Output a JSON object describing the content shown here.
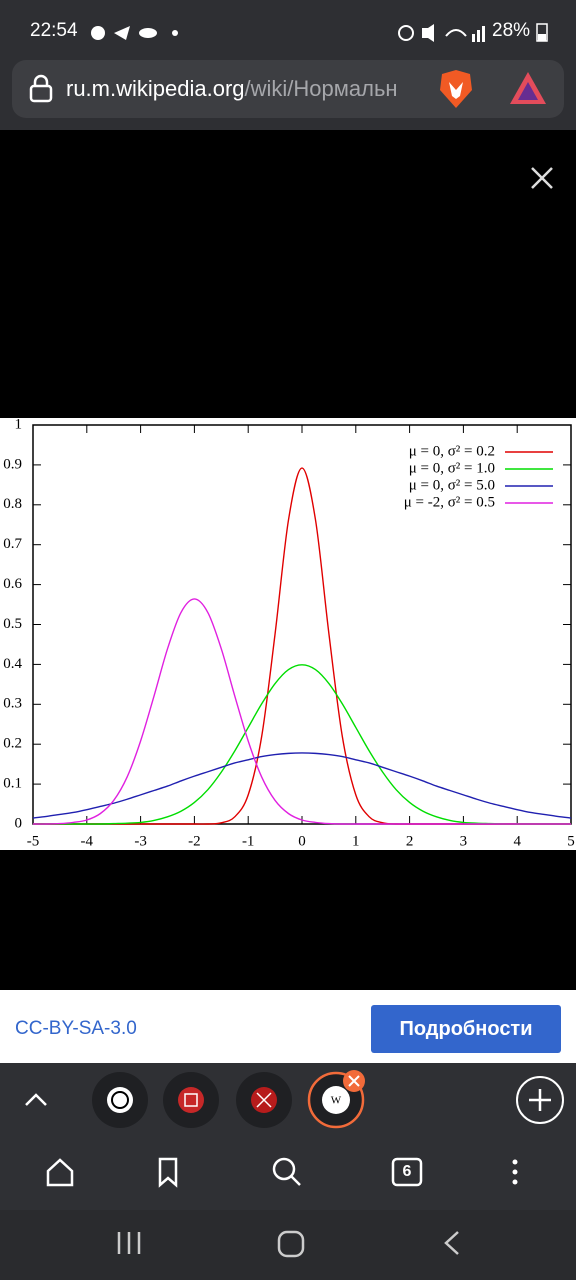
{
  "status_bar": {
    "time": "22:54",
    "battery": "28%"
  },
  "address_bar": {
    "domain": "ru.m.wikipedia.org",
    "path": "/wiki/Нормальн"
  },
  "chart_data": {
    "type": "line",
    "x": [
      -5,
      -4.75,
      -4.5,
      -4.25,
      -4,
      -3.75,
      -3.5,
      -3.25,
      -3,
      -2.75,
      -2.5,
      -2.25,
      -2,
      -1.75,
      -1.5,
      -1.25,
      -1,
      -0.75,
      -0.5,
      -0.25,
      0,
      0.25,
      0.5,
      0.75,
      1,
      1.25,
      1.5,
      1.75,
      2,
      2.25,
      2.5,
      2.75,
      3,
      3.25,
      3.5,
      3.75,
      4,
      4.25,
      4.5,
      4.75,
      5
    ],
    "series": [
      {
        "name": "μ =  0, σ² = 0.2",
        "color": "#e00000",
        "values": [
          0,
          0,
          0,
          0,
          0,
          0,
          0,
          0,
          0,
          0,
          0,
          0,
          0,
          0,
          0.003,
          0.018,
          0.073,
          0.219,
          0.477,
          0.763,
          0.892,
          0.763,
          0.477,
          0.219,
          0.073,
          0.018,
          0.003,
          0,
          0,
          0,
          0,
          0,
          0,
          0,
          0,
          0,
          0,
          0,
          0,
          0,
          0
        ]
      },
      {
        "name": "μ =  0, σ² = 1.0",
        "color": "#00dd00",
        "values": [
          0,
          0,
          0,
          0,
          0,
          0,
          0.001,
          0.002,
          0.004,
          0.009,
          0.018,
          0.032,
          0.054,
          0.086,
          0.13,
          0.183,
          0.242,
          0.301,
          0.352,
          0.387,
          0.399,
          0.387,
          0.352,
          0.301,
          0.242,
          0.183,
          0.13,
          0.086,
          0.054,
          0.032,
          0.018,
          0.009,
          0.004,
          0.002,
          0.001,
          0,
          0,
          0,
          0,
          0,
          0
        ]
      },
      {
        "name": "μ =  0, σ² = 5.0",
        "color": "#2020b0",
        "values": [
          0.015,
          0.019,
          0.024,
          0.029,
          0.036,
          0.044,
          0.052,
          0.062,
          0.073,
          0.084,
          0.095,
          0.108,
          0.12,
          0.131,
          0.142,
          0.153,
          0.161,
          0.169,
          0.174,
          0.177,
          0.178,
          0.177,
          0.174,
          0.169,
          0.161,
          0.153,
          0.142,
          0.131,
          0.12,
          0.108,
          0.095,
          0.084,
          0.073,
          0.062,
          0.052,
          0.044,
          0.036,
          0.029,
          0.024,
          0.019,
          0.015
        ]
      },
      {
        "name": "μ = -2, σ² = 0.5",
        "color": "#e020e0",
        "values": [
          0,
          0,
          0.001,
          0.004,
          0.01,
          0.026,
          0.059,
          0.118,
          0.208,
          0.321,
          0.439,
          0.53,
          0.564,
          0.53,
          0.439,
          0.321,
          0.208,
          0.118,
          0.059,
          0.026,
          0.01,
          0.004,
          0.001,
          0,
          0,
          0,
          0,
          0,
          0,
          0,
          0,
          0,
          0,
          0,
          0,
          0,
          0,
          0,
          0,
          0,
          0
        ]
      }
    ],
    "xlim": [
      -5,
      5
    ],
    "xticks": [
      -5,
      -4,
      -3,
      -2,
      -1,
      0,
      1,
      2,
      3,
      4,
      5
    ],
    "ylim": [
      0,
      1
    ],
    "yticks": [
      0,
      0.1,
      0.2,
      0.3,
      0.4,
      0.5,
      0.6,
      0.7,
      0.8,
      0.9,
      1
    ],
    "legend": "upper right"
  },
  "footer": {
    "license": "CC-BY-SA-3.0",
    "details_button": "Подробности"
  },
  "toolbar": {
    "tab_count": 6
  }
}
